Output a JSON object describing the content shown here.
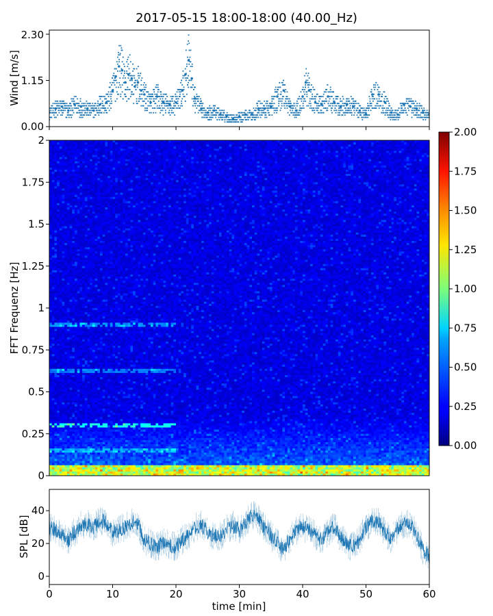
{
  "chart_data": [
    {
      "type": "scatter",
      "title": "2017-05-15 18:00-18:00 (40.00_Hz)",
      "xlabel": "",
      "ylabel": "Wind [m/s]",
      "xlim": [
        0,
        60
      ],
      "ylim": [
        0,
        2.3
      ],
      "yticks": [
        "0.00",
        "1.15",
        "2.30"
      ],
      "color": "#1f77b4",
      "grid": false,
      "series": [
        {
          "x": [
            0,
            1,
            2,
            3,
            4,
            5,
            6,
            7,
            8,
            9,
            10,
            10.5,
            11,
            11.5,
            12,
            12.5,
            13,
            13.5,
            14,
            14.5,
            15,
            16,
            17,
            18,
            19,
            20,
            21,
            21.5,
            22,
            22.5,
            23,
            24,
            25,
            26,
            27,
            28,
            29,
            30,
            31,
            32,
            33,
            34,
            35,
            36,
            37,
            38,
            39,
            40,
            40.5,
            41,
            42,
            43,
            44,
            45,
            46,
            47,
            48,
            49,
            50,
            51,
            52,
            53,
            54,
            55,
            56,
            57,
            58,
            59,
            60
          ],
          "y": [
            0.35,
            0.45,
            0.5,
            0.4,
            0.55,
            0.5,
            0.45,
            0.4,
            0.55,
            0.6,
            0.9,
            1.25,
            1.5,
            1.4,
            1.1,
            1.3,
            1.2,
            1.0,
            1.1,
            0.9,
            0.8,
            0.6,
            0.75,
            0.6,
            0.55,
            0.6,
            0.9,
            1.3,
            1.65,
            1.2,
            0.7,
            0.45,
            0.35,
            0.4,
            0.3,
            0.25,
            0.2,
            0.25,
            0.3,
            0.3,
            0.45,
            0.45,
            0.5,
            0.75,
            0.9,
            0.5,
            0.4,
            0.75,
            1.1,
            0.9,
            0.6,
            0.55,
            0.75,
            0.6,
            0.5,
            0.55,
            0.5,
            0.4,
            0.3,
            0.8,
            0.8,
            0.6,
            0.35,
            0.3,
            0.55,
            0.5,
            0.45,
            0.35,
            0.3
          ]
        }
      ]
    },
    {
      "type": "heatmap",
      "xlabel": "",
      "ylabel": "FFT Frequenz [Hz]",
      "xlim": [
        0,
        60
      ],
      "ylim": [
        0,
        2
      ],
      "yticks": [
        "0",
        "0.25",
        "0.5",
        "0.75",
        "1",
        "1.25",
        "1.5",
        "1.75",
        "2"
      ],
      "colormap": "jet",
      "colorbar": {
        "range": [
          0.0,
          2.0
        ],
        "ticks": [
          "0.00",
          "0.25",
          "0.50",
          "0.75",
          "1.00",
          "1.25",
          "1.50",
          "1.75",
          "2.00"
        ]
      }
    },
    {
      "type": "line",
      "xlabel": "time [min]",
      "ylabel": "SPL [dB]",
      "xlim": [
        0,
        60
      ],
      "ylim": [
        -5,
        53
      ],
      "xticks": [
        "0",
        "10",
        "20",
        "30",
        "40",
        "50",
        "60"
      ],
      "yticks": [
        "0",
        "20",
        "40"
      ],
      "color": "#1f77b4",
      "series": [
        {
          "x": [
            0,
            1,
            2,
            3,
            4,
            5,
            6,
            7,
            8,
            9,
            10,
            11,
            12,
            13,
            14,
            15,
            16,
            17,
            18,
            19,
            20,
            21,
            22,
            23,
            24,
            25,
            26,
            27,
            28,
            29,
            30,
            31,
            32,
            33,
            34,
            35,
            36,
            37,
            38,
            39,
            40,
            41,
            42,
            43,
            44,
            45,
            46,
            47,
            48,
            49,
            50,
            51,
            52,
            53,
            54,
            55,
            56,
            57,
            58,
            59,
            60
          ],
          "y": [
            30,
            28,
            25,
            22,
            27,
            31,
            32,
            30,
            34,
            33,
            27,
            28,
            30,
            33,
            32,
            22,
            20,
            18,
            21,
            19,
            18,
            22,
            25,
            30,
            31,
            27,
            25,
            24,
            29,
            31,
            28,
            32,
            38,
            35,
            29,
            25,
            20,
            16,
            23,
            28,
            30,
            28,
            25,
            22,
            27,
            30,
            24,
            19,
            18,
            22,
            30,
            34,
            33,
            27,
            22,
            29,
            32,
            32,
            25,
            16,
            12
          ]
        }
      ]
    }
  ]
}
